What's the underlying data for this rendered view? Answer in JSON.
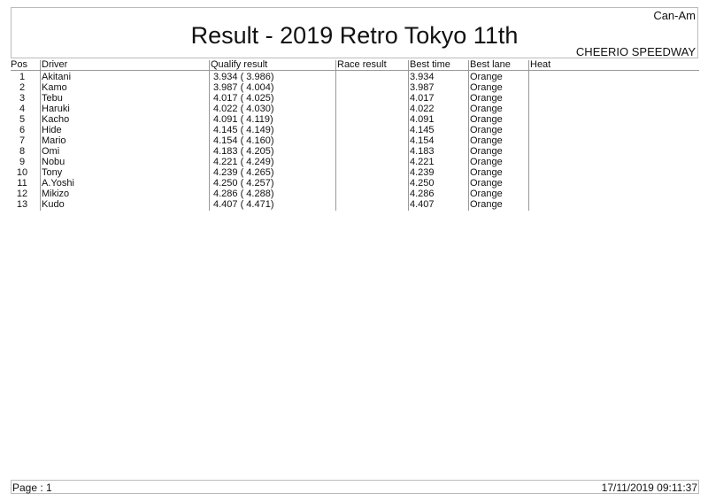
{
  "header": {
    "title": "Result - 2019 Retro Tokyo 11th",
    "category": "Can-Am",
    "venue": "CHEERIO SPEEDWAY"
  },
  "columns": [
    "Pos",
    "Driver",
    "Qualify result",
    "Race result",
    "Best time",
    "Best lane",
    "Heat"
  ],
  "rows": [
    {
      "pos": "1",
      "driver": "Akitani",
      "qualify": "3.934 ( 3.986)",
      "race": "",
      "best_time": "3.934",
      "best_lane": "Orange",
      "heat": ""
    },
    {
      "pos": "2",
      "driver": "Kamo",
      "qualify": "3.987 ( 4.004)",
      "race": "",
      "best_time": "3.987",
      "best_lane": "Orange",
      "heat": ""
    },
    {
      "pos": "3",
      "driver": "Tebu",
      "qualify": "4.017 ( 4.025)",
      "race": "",
      "best_time": "4.017",
      "best_lane": "Orange",
      "heat": ""
    },
    {
      "pos": "4",
      "driver": "Haruki",
      "qualify": "4.022 ( 4.030)",
      "race": "",
      "best_time": "4.022",
      "best_lane": "Orange",
      "heat": ""
    },
    {
      "pos": "5",
      "driver": "Kacho",
      "qualify": "4.091 ( 4.119)",
      "race": "",
      "best_time": "4.091",
      "best_lane": "Orange",
      "heat": ""
    },
    {
      "pos": "6",
      "driver": "Hide",
      "qualify": "4.145 ( 4.149)",
      "race": "",
      "best_time": "4.145",
      "best_lane": "Orange",
      "heat": ""
    },
    {
      "pos": "7",
      "driver": "Mario",
      "qualify": "4.154 ( 4.160)",
      "race": "",
      "best_time": "4.154",
      "best_lane": "Orange",
      "heat": ""
    },
    {
      "pos": "8",
      "driver": "Omi",
      "qualify": "4.183 ( 4.205)",
      "race": "",
      "best_time": "4.183",
      "best_lane": "Orange",
      "heat": ""
    },
    {
      "pos": "9",
      "driver": "Nobu",
      "qualify": "4.221 ( 4.249)",
      "race": "",
      "best_time": "4.221",
      "best_lane": "Orange",
      "heat": ""
    },
    {
      "pos": "10",
      "driver": "Tony",
      "qualify": "4.239 ( 4.265)",
      "race": "",
      "best_time": "4.239",
      "best_lane": "Orange",
      "heat": ""
    },
    {
      "pos": "11",
      "driver": "A.Yoshi",
      "qualify": "4.250 ( 4.257)",
      "race": "",
      "best_time": "4.250",
      "best_lane": "Orange",
      "heat": ""
    },
    {
      "pos": "12",
      "driver": "Mikizo",
      "qualify": "4.286 ( 4.288)",
      "race": "",
      "best_time": "4.286",
      "best_lane": "Orange",
      "heat": ""
    },
    {
      "pos": "13",
      "driver": "Kudo",
      "qualify": "4.407 ( 4.471)",
      "race": "",
      "best_time": "4.407",
      "best_lane": "Orange",
      "heat": ""
    }
  ],
  "footer": {
    "page": "Page : 1",
    "timestamp": "17/11/2019  09:11:37"
  }
}
